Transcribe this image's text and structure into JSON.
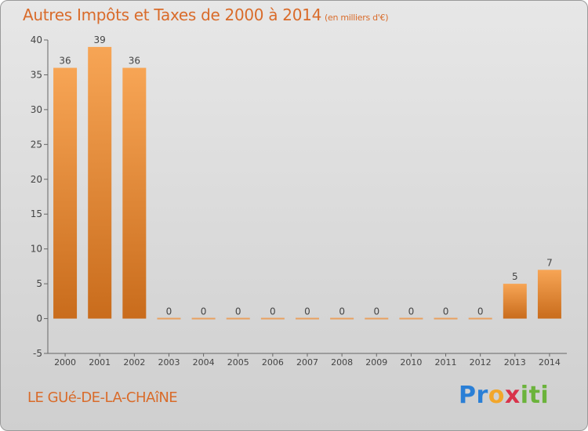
{
  "chart_data": {
    "type": "bar",
    "title": "Autres Impôts et Taxes de 2000 à 2014",
    "unit_label": "(en milliers d'€)",
    "categories": [
      "2000",
      "2001",
      "2002",
      "2003",
      "2004",
      "2005",
      "2006",
      "2007",
      "2008",
      "2009",
      "2010",
      "2011",
      "2012",
      "2013",
      "2014"
    ],
    "values": [
      36,
      39,
      36,
      0,
      0,
      0,
      0,
      0,
      0,
      0,
      0,
      0,
      0,
      5,
      7
    ],
    "value_labels": [
      "36",
      "39",
      "36",
      "0",
      "0",
      "0",
      "0",
      "0",
      "0",
      "0",
      "0",
      "0",
      "0",
      "5",
      "7"
    ],
    "ylim": [
      -5,
      40
    ],
    "yticks": [
      -5,
      0,
      5,
      10,
      15,
      20,
      25,
      30,
      35,
      40
    ],
    "grid": false,
    "bar_color": "#f0913a",
    "bar_color_dark": "#c86a1a"
  },
  "commune": "LE GUé-DE-LA-CHAîNE",
  "logo": {
    "p": "Pr",
    "o": "o",
    "x": "x",
    "i": "iti"
  },
  "colors": {
    "title": "#d96b2a",
    "axis": "#555555"
  }
}
